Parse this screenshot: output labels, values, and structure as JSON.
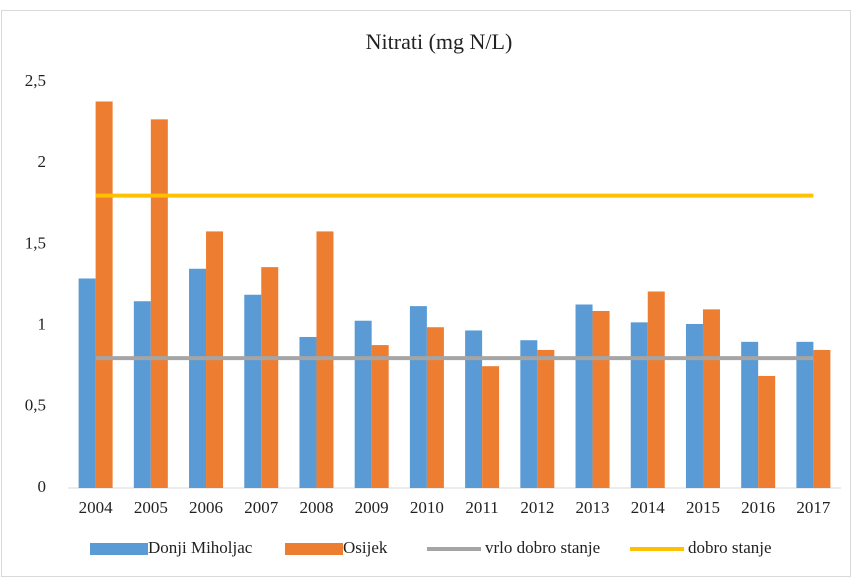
{
  "chart_data": {
    "type": "bar",
    "title": "Nitrati (mg N/L)",
    "categories": [
      "2004",
      "2005",
      "2006",
      "2007",
      "2008",
      "2009",
      "2010",
      "2011",
      "2012",
      "2013",
      "2014",
      "2015",
      "2016",
      "2017"
    ],
    "series": [
      {
        "name": "Donji Miholjac",
        "color": "#5b9bd5",
        "type": "bar",
        "values": [
          1.29,
          1.15,
          1.35,
          1.19,
          0.93,
          1.03,
          1.12,
          0.97,
          0.91,
          1.13,
          1.02,
          1.01,
          0.9,
          0.9
        ]
      },
      {
        "name": "Osijek",
        "color": "#ed7d31",
        "type": "bar",
        "values": [
          2.38,
          2.27,
          1.58,
          1.36,
          1.58,
          0.88,
          0.99,
          0.75,
          0.85,
          1.09,
          1.21,
          1.1,
          0.69,
          0.85
        ]
      },
      {
        "name": "vrlo dobro stanje",
        "color": "#a5a5a5",
        "type": "line",
        "values": [
          0.8,
          0.8,
          0.8,
          0.8,
          0.8,
          0.8,
          0.8,
          0.8,
          0.8,
          0.8,
          0.8,
          0.8,
          0.8,
          0.8
        ]
      },
      {
        "name": "dobro stanje",
        "color": "#ffc000",
        "type": "line",
        "values": [
          1.8,
          1.8,
          1.8,
          1.8,
          1.8,
          1.8,
          1.8,
          1.8,
          1.8,
          1.8,
          1.8,
          1.8,
          1.8,
          1.8
        ]
      }
    ],
    "ylim": [
      0,
      2.5
    ],
    "yticks": [
      0,
      {
        "value": 0.5,
        "label": "0,5"
      },
      1,
      {
        "value": 1.5,
        "label": "1,5"
      },
      2,
      {
        "value": 2.5,
        "label": "2,5"
      }
    ],
    "grid": false,
    "legend": "bottom"
  }
}
